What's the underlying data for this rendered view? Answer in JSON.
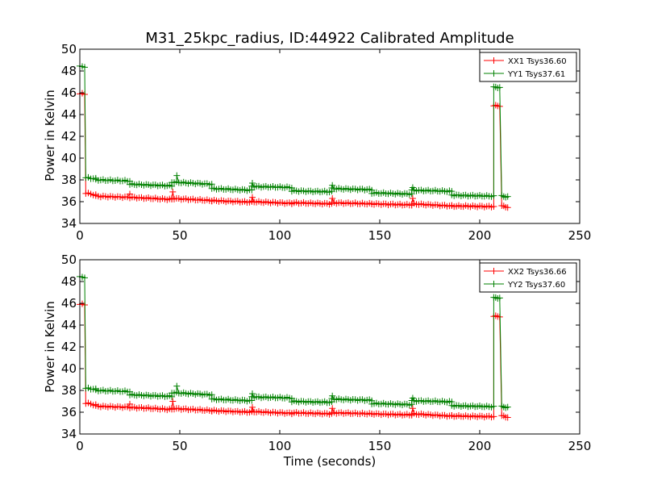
{
  "chart_data": {
    "title": "M31_25kpc_radius, ID:44922 Calibrated Amplitude",
    "xlabel": "Time (seconds)",
    "colors": {
      "xx": "#ff0000",
      "yy": "#008000"
    },
    "panels": [
      {
        "type": "line",
        "ylabel": "Power in Kelvin",
        "xlim": [
          0,
          250
        ],
        "ylim": [
          34,
          50
        ],
        "xticks": [
          "0",
          "50",
          "100",
          "150",
          "200",
          "250"
        ],
        "yticks": [
          "34",
          "36",
          "38",
          "40",
          "42",
          "44",
          "46",
          "48",
          "50"
        ],
        "legend_position": "top-right",
        "series": [
          {
            "name": "XX1 Tsys36.60",
            "color": "#ff0000",
            "segments": [
              {
                "x0": 0,
                "x1": 2.4,
                "y": 45.9
              },
              {
                "x0": 3,
                "x1": 8,
                "y": 36.8,
                "y1": 36.6
              },
              {
                "x0": 8,
                "x1": 25,
                "y": 36.5,
                "y1": 36.4
              },
              {
                "x0": 25,
                "x1": 46,
                "y": 36.4,
                "y1": 36.2
              },
              {
                "x0": 46,
                "x1": 66,
                "y": 36.3,
                "y1": 36.1
              },
              {
                "x0": 66,
                "x1": 86,
                "y": 36.1,
                "y1": 35.95
              },
              {
                "x0": 86,
                "x1": 106,
                "y": 36.0,
                "y1": 35.85
              },
              {
                "x0": 106,
                "x1": 126,
                "y": 35.9,
                "y1": 35.8
              },
              {
                "x0": 126,
                "x1": 146,
                "y": 35.9,
                "y1": 35.8
              },
              {
                "x0": 146,
                "x1": 166,
                "y": 35.8,
                "y1": 35.7
              },
              {
                "x0": 166,
                "x1": 186,
                "y": 35.8,
                "y1": 35.6
              },
              {
                "x0": 186,
                "x1": 207,
                "y": 35.6,
                "y1": 35.55
              },
              {
                "x0": 207,
                "x1": 210,
                "y": 44.8
              },
              {
                "x0": 211,
                "x1": 214,
                "y": 35.6,
                "y1": 35.5
              }
            ],
            "spikes": [
              {
                "x": 25,
                "y": 36.7
              },
              {
                "x": 46.5,
                "y": 36.9
              },
              {
                "x": 86.3,
                "y": 36.4
              },
              {
                "x": 126.3,
                "y": 36.3
              },
              {
                "x": 166.5,
                "y": 36.3
              }
            ]
          },
          {
            "name": "YY1 Tsys37.61",
            "color": "#008000",
            "segments": [
              {
                "x0": 0,
                "x1": 2.4,
                "y": 48.4
              },
              {
                "x0": 3,
                "x1": 8,
                "y": 38.2,
                "y1": 38.1
              },
              {
                "x0": 8,
                "x1": 25,
                "y": 38.0,
                "y1": 37.9
              },
              {
                "x0": 25,
                "x1": 46,
                "y": 37.6,
                "y1": 37.45
              },
              {
                "x0": 46,
                "x1": 66,
                "y": 37.8,
                "y1": 37.6
              },
              {
                "x0": 66,
                "x1": 86,
                "y": 37.2,
                "y1": 37.05
              },
              {
                "x0": 86,
                "x1": 106,
                "y": 37.4,
                "y1": 37.3
              },
              {
                "x0": 106,
                "x1": 126,
                "y": 37.0,
                "y1": 36.9
              },
              {
                "x0": 126,
                "x1": 146,
                "y": 37.2,
                "y1": 37.1
              },
              {
                "x0": 146,
                "x1": 166,
                "y": 36.8,
                "y1": 36.7
              },
              {
                "x0": 166,
                "x1": 186,
                "y": 37.05,
                "y1": 36.95
              },
              {
                "x0": 186,
                "x1": 207,
                "y": 36.6,
                "y1": 36.5
              },
              {
                "x0": 207,
                "x1": 210,
                "y": 46.5
              },
              {
                "x0": 211,
                "x1": 214,
                "y": 36.5,
                "y1": 36.45
              }
            ],
            "spikes": [
              {
                "x": 48.5,
                "y": 38.4
              },
              {
                "x": 86.3,
                "y": 37.7
              },
              {
                "x": 126.3,
                "y": 37.5
              },
              {
                "x": 166.5,
                "y": 37.3
              }
            ]
          }
        ]
      },
      {
        "type": "line",
        "ylabel": "Power in Kelvin",
        "xlim": [
          0,
          250
        ],
        "ylim": [
          34,
          50
        ],
        "xticks": [
          "0",
          "50",
          "100",
          "150",
          "200",
          "250"
        ],
        "yticks": [
          "34",
          "36",
          "38",
          "40",
          "42",
          "44",
          "46",
          "48",
          "50"
        ],
        "legend_position": "top-right",
        "series": [
          {
            "name": "XX2 Tsys36.66",
            "color": "#ff0000",
            "segments": [
              {
                "x0": 0,
                "x1": 2.4,
                "y": 45.9
              },
              {
                "x0": 3,
                "x1": 8,
                "y": 36.85,
                "y1": 36.65
              },
              {
                "x0": 8,
                "x1": 25,
                "y": 36.55,
                "y1": 36.45
              },
              {
                "x0": 25,
                "x1": 46,
                "y": 36.45,
                "y1": 36.25
              },
              {
                "x0": 46,
                "x1": 66,
                "y": 36.35,
                "y1": 36.15
              },
              {
                "x0": 66,
                "x1": 86,
                "y": 36.15,
                "y1": 36.0
              },
              {
                "x0": 86,
                "x1": 106,
                "y": 36.05,
                "y1": 35.9
              },
              {
                "x0": 106,
                "x1": 126,
                "y": 35.95,
                "y1": 35.85
              },
              {
                "x0": 126,
                "x1": 146,
                "y": 35.95,
                "y1": 35.85
              },
              {
                "x0": 146,
                "x1": 166,
                "y": 35.85,
                "y1": 35.75
              },
              {
                "x0": 166,
                "x1": 186,
                "y": 35.85,
                "y1": 35.65
              },
              {
                "x0": 186,
                "x1": 207,
                "y": 35.65,
                "y1": 35.6
              },
              {
                "x0": 207,
                "x1": 210,
                "y": 44.8
              },
              {
                "x0": 211,
                "x1": 214,
                "y": 35.65,
                "y1": 35.55
              }
            ],
            "spikes": [
              {
                "x": 25,
                "y": 36.75
              },
              {
                "x": 46.5,
                "y": 37.0
              },
              {
                "x": 86.3,
                "y": 36.45
              },
              {
                "x": 126.3,
                "y": 36.35
              },
              {
                "x": 166.5,
                "y": 36.35
              }
            ]
          },
          {
            "name": "YY2 Tsys37.60",
            "color": "#008000",
            "segments": [
              {
                "x0": 0,
                "x1": 2.4,
                "y": 48.4
              },
              {
                "x0": 3,
                "x1": 8,
                "y": 38.2,
                "y1": 38.1
              },
              {
                "x0": 8,
                "x1": 25,
                "y": 38.0,
                "y1": 37.9
              },
              {
                "x0": 25,
                "x1": 46,
                "y": 37.6,
                "y1": 37.45
              },
              {
                "x0": 46,
                "x1": 66,
                "y": 37.8,
                "y1": 37.6
              },
              {
                "x0": 66,
                "x1": 86,
                "y": 37.2,
                "y1": 37.05
              },
              {
                "x0": 86,
                "x1": 106,
                "y": 37.4,
                "y1": 37.3
              },
              {
                "x0": 106,
                "x1": 126,
                "y": 37.0,
                "y1": 36.9
              },
              {
                "x0": 126,
                "x1": 146,
                "y": 37.2,
                "y1": 37.1
              },
              {
                "x0": 146,
                "x1": 166,
                "y": 36.8,
                "y1": 36.7
              },
              {
                "x0": 166,
                "x1": 186,
                "y": 37.05,
                "y1": 36.95
              },
              {
                "x0": 186,
                "x1": 207,
                "y": 36.6,
                "y1": 36.5
              },
              {
                "x0": 207,
                "x1": 210,
                "y": 46.5
              },
              {
                "x0": 211,
                "x1": 214,
                "y": 36.5,
                "y1": 36.45
              }
            ],
            "spikes": [
              {
                "x": 48.5,
                "y": 38.4
              },
              {
                "x": 86.3,
                "y": 37.7
              },
              {
                "x": 126.3,
                "y": 37.5
              },
              {
                "x": 166.5,
                "y": 37.3
              }
            ]
          }
        ]
      }
    ]
  }
}
